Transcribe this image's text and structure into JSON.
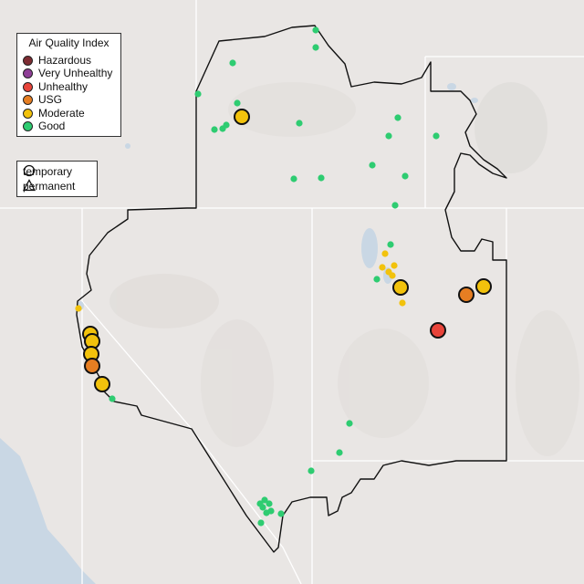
{
  "legend": {
    "title": "Air Quality Index",
    "categories": [
      {
        "label": "Hazardous",
        "color": "#7e2d33"
      },
      {
        "label": "Very Unhealthy",
        "color": "#8f3f97"
      },
      {
        "label": "Unhealthy",
        "color": "#e8443a"
      },
      {
        "label": "USG",
        "color": "#e67e22"
      },
      {
        "label": "Moderate",
        "color": "#f2c20c"
      },
      {
        "label": "Good",
        "color": "#2ecc71"
      }
    ]
  },
  "shape_legend": {
    "temporary_label": "temporary",
    "permanent_label": "permanent"
  },
  "colors": {
    "background": "#e9e6e4",
    "region_fill": "#ece9e7",
    "boundary": "#111111",
    "state_lines": "#ffffff",
    "water": "#c9d7e4"
  }
}
